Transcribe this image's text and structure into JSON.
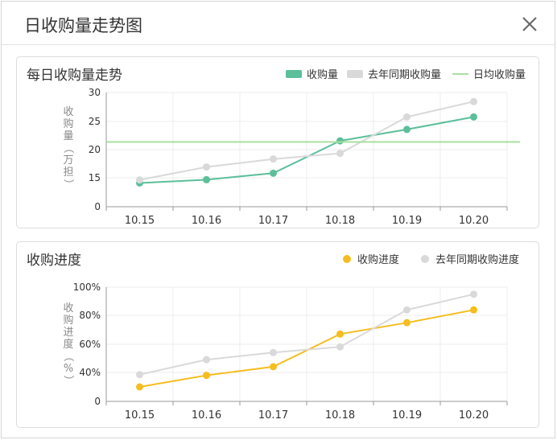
{
  "dialog": {
    "title": "日收购量走势图"
  },
  "colors": {
    "green": "#5bbf9a",
    "gray": "#d9d9d9",
    "lightgreen": "#a9dfa0",
    "yellow": "#f5bd1f"
  },
  "chart_data": [
    {
      "type": "line",
      "title": "每日收购量走势",
      "ylabel": "收购量（万担）",
      "categories": [
        "10.15",
        "10.16",
        "10.17",
        "10.18",
        "10.19",
        "10.20"
      ],
      "yticks": [
        "0",
        "15",
        "20",
        "25",
        "30"
      ],
      "series": [
        {
          "name": "收购量",
          "values": [
            12.3,
            14.0,
            15.8,
            21.5,
            23.5,
            25.7
          ]
        },
        {
          "name": "去年同期收购量",
          "values": [
            13.9,
            16.9,
            18.3,
            19.3,
            25.7,
            28.4
          ]
        },
        {
          "name": "日均收购量",
          "values": [
            21.3,
            21.3,
            21.3,
            21.3,
            21.3,
            21.3
          ]
        }
      ],
      "ylim": [
        0,
        30
      ],
      "grid": true,
      "legend": "top-right"
    },
    {
      "type": "line",
      "title": "收购进度",
      "ylabel": "收购进度（%）",
      "categories": [
        "10.15",
        "10.16",
        "10.17",
        "10.18",
        "10.19",
        "10.20"
      ],
      "yticks": [
        "0",
        "40%",
        "60%",
        "80%",
        "100%"
      ],
      "series": [
        {
          "name": "收购进度",
          "values": [
            20,
            36,
            44,
            67,
            75,
            84
          ]
        },
        {
          "name": "去年同期收购进度",
          "values": [
            37,
            49,
            54,
            58,
            84,
            95
          ]
        }
      ],
      "ylim": [
        0,
        100
      ],
      "grid": true,
      "legend": "top-right"
    }
  ]
}
